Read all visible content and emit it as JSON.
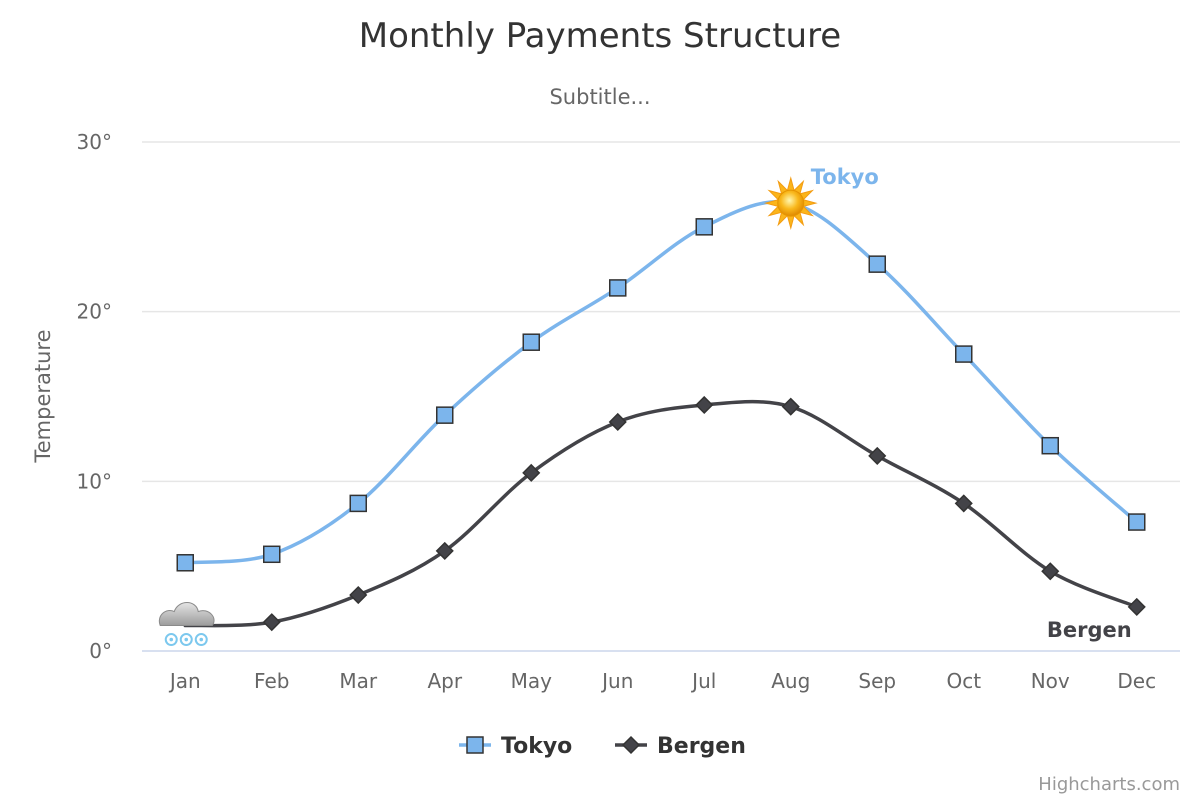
{
  "chart_data": {
    "type": "line",
    "title": "Monthly Payments Structure",
    "subtitle": "Subtitle...",
    "ylabel": "Temperature",
    "xlabel": "",
    "categories": [
      "Jan",
      "Feb",
      "Mar",
      "Apr",
      "May",
      "Jun",
      "Jul",
      "Aug",
      "Sep",
      "Oct",
      "Nov",
      "Dec"
    ],
    "ylim": [
      0,
      30
    ],
    "yticks": [
      0,
      10,
      20,
      30
    ],
    "ytick_labels": [
      "0°",
      "10°",
      "20°",
      "30°"
    ],
    "grid": true,
    "legend_position": "bottom-center",
    "series": [
      {
        "name": "Tokyo",
        "color": "#7cb5ec",
        "marker": "square",
        "values": [
          5.2,
          5.7,
          8.7,
          13.9,
          18.2,
          21.4,
          25.0,
          26.4,
          22.8,
          17.5,
          12.1,
          7.6
        ],
        "label": "Tokyo",
        "special_marker": {
          "month": "Aug",
          "icon": "sun-icon"
        }
      },
      {
        "name": "Bergen",
        "color": "#434348",
        "marker": "diamond",
        "values": [
          1.5,
          1.7,
          3.3,
          5.9,
          10.5,
          13.5,
          14.5,
          14.4,
          11.5,
          8.7,
          4.7,
          2.6
        ],
        "label": "Bergen",
        "special_marker": {
          "month": "Jan",
          "icon": "snow-cloud-icon"
        }
      }
    ],
    "credits": "Highcharts.com"
  }
}
